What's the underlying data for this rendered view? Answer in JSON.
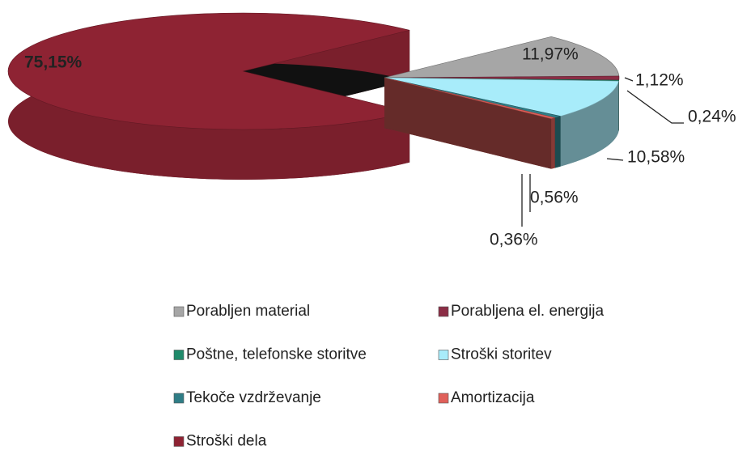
{
  "chart_data": {
    "type": "pie",
    "categories": [
      "Porabljen material",
      "Porabljena el. energija",
      "Poštne, telefonske storitve",
      "Stroški storitev",
      "Tekoče vzdrževanje",
      "Amortizacija",
      "Stroški dela"
    ],
    "values": [
      11.97,
      1.12,
      0.24,
      10.58,
      0.56,
      0.36,
      75.15
    ],
    "value_labels": [
      "11,97%",
      "1,12%",
      "0,24%",
      "10,58%",
      "0,56%",
      "0,36%",
      "75,15%"
    ],
    "colors": [
      "#a6a6a6",
      "#8b2d45",
      "#1f8a6a",
      "#a8ecfa",
      "#2f7d86",
      "#e0605a",
      "#8e2333"
    ],
    "legend": "bottom"
  }
}
